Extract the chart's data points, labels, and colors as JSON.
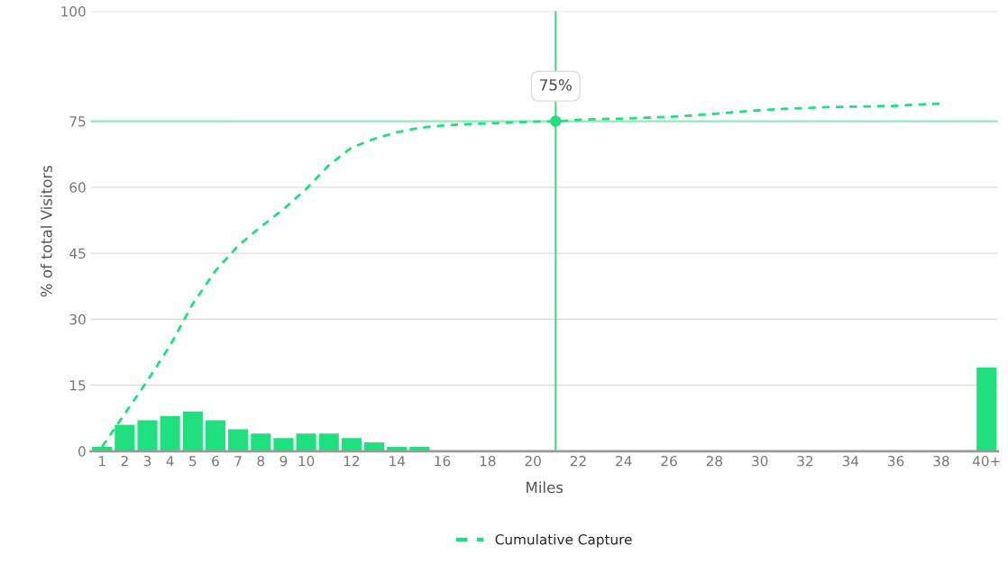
{
  "chart_data": {
    "type": "bar",
    "xlabel": "Miles",
    "ylabel": "% of total Visitors",
    "x": [
      1,
      2,
      3,
      4,
      5,
      6,
      7,
      8,
      9,
      10,
      11,
      12,
      13,
      14,
      15,
      16,
      17,
      18,
      19,
      20,
      21,
      22,
      23,
      24,
      25,
      26,
      27,
      28,
      29,
      30,
      31,
      32,
      33,
      34,
      35,
      36,
      37,
      38,
      39,
      40
    ],
    "series": [
      {
        "color": "#1ee07f",
        "values": [
          1,
          6,
          7,
          8,
          9,
          7,
          5,
          4,
          3,
          4,
          4,
          3,
          2,
          1,
          1,
          0,
          0,
          0,
          0,
          0,
          0,
          0,
          0,
          0,
          0,
          0,
          0,
          0,
          0,
          0,
          0,
          0,
          0,
          0,
          0,
          0,
          0,
          0,
          0,
          19
        ]
      },
      {
        "type": "line",
        "name": "Cumulative Capture",
        "color": "#1ee07f",
        "line_style": "dashed",
        "values": [
          1,
          8.5,
          16,
          24,
          33.5,
          41,
          46.7,
          51,
          55,
          59.6,
          65,
          69,
          71,
          72.5,
          73.5,
          74,
          74.3,
          74.5,
          74.7,
          74.9,
          75,
          75.3,
          75.5,
          75.6,
          75.8,
          76,
          76.3,
          76.7,
          77.1,
          77.5,
          77.8,
          78,
          78.2,
          78.3,
          78.4,
          78.5,
          78.8,
          79,
          null,
          null
        ]
      }
    ],
    "xlim": [
      0.5,
      40.5
    ],
    "xticks": [
      1,
      2,
      3,
      4,
      5,
      6,
      7,
      8,
      9,
      10,
      12,
      14,
      16,
      18,
      20,
      22,
      24,
      26,
      28,
      30,
      32,
      34,
      36,
      38,
      {
        "value": 40,
        "label": "40+"
      }
    ],
    "ylim": [
      0,
      100
    ],
    "yticks": [
      0,
      15,
      30,
      45,
      60,
      75,
      100
    ],
    "grid": "y",
    "legend": "bottom",
    "ref_lines": [
      {
        "axis": "y",
        "value": 75,
        "color": "#8eecbb",
        "line_style": "solid"
      },
      {
        "axis": "x",
        "value": 21,
        "color": "#3ddc84",
        "line_style": "solid"
      }
    ],
    "annotations": [
      {
        "text": "75%",
        "x": 21,
        "y": 75
      }
    ]
  }
}
